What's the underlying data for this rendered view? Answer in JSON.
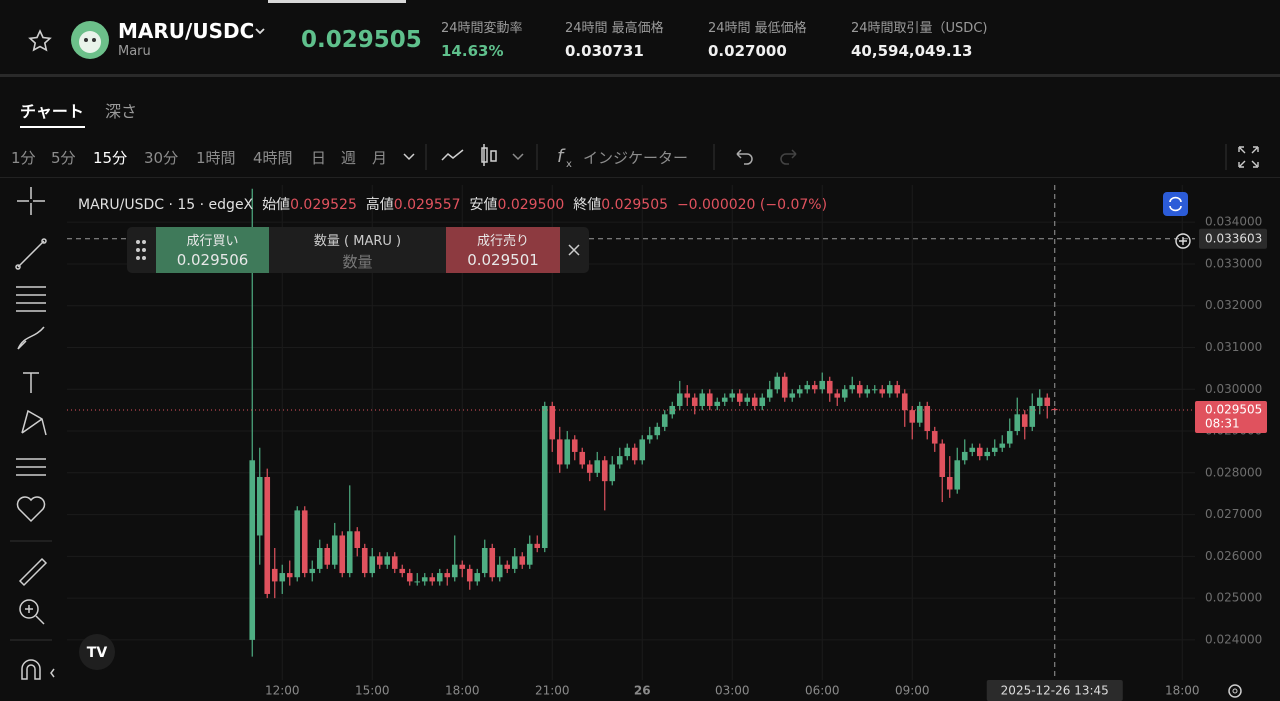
{
  "header": {
    "pair": "MARU/USDC",
    "name": "Maru",
    "price": "0.029505",
    "stats": [
      {
        "label": "24時間変動率",
        "value": "14.63%"
      },
      {
        "label": "24時間 最高価格",
        "value": "0.030731"
      },
      {
        "label": "24時間 最低価格",
        "value": "0.027000"
      },
      {
        "label": "24時間取引量（USDC)",
        "value": "40,594,049.13"
      }
    ]
  },
  "tabs": [
    "チャート",
    "深さ"
  ],
  "intervals": [
    "1分",
    "5分",
    "15分",
    "30分",
    "1時間",
    "4時間",
    "日",
    "週",
    "月"
  ],
  "indicator_button": "インジケーター",
  "order_panel": {
    "buy_label": "成行買い",
    "buy_price": "0.029506",
    "qty_label": "数量 ( MARU )",
    "qty_placeholder": "数量",
    "sell_label": "成行売り",
    "sell_price": "0.029501"
  },
  "legend": {
    "symbol": "MARU/USDC · 15 · edgeX",
    "open_label": "始値",
    "open": "0.029525",
    "high_label": "高値",
    "high": "0.029557",
    "low_label": "安値",
    "low": "0.029500",
    "close_label": "終値",
    "close": "0.029505",
    "change": "−0.000020 (−0.07%)"
  },
  "chart_data": {
    "type": "candlestick",
    "up_color": "#4fae83",
    "down_color": "#e0525e",
    "grid": true,
    "xlim": [
      -24.7,
      125.7
    ],
    "xticks": [
      {
        "value": 4,
        "label": "12:00"
      },
      {
        "value": 16,
        "label": "15:00"
      },
      {
        "value": 28,
        "label": "18:00"
      },
      {
        "value": 40,
        "label": "21:00"
      },
      {
        "value": 52,
        "label": "26"
      },
      {
        "value": 64,
        "label": "03:00"
      },
      {
        "value": 76,
        "label": "06:00"
      },
      {
        "value": 88,
        "label": "09:00"
      },
      {
        "value": 124,
        "label": "18:00"
      }
    ],
    "ylim": [
      0.02304,
      0.03489
    ],
    "yticks": [
      {
        "value": 0.024,
        "label": "0.024000"
      },
      {
        "value": 0.025,
        "label": "0.025000"
      },
      {
        "value": 0.026,
        "label": "0.026000"
      },
      {
        "value": 0.027,
        "label": "0.027000"
      },
      {
        "value": 0.028,
        "label": "0.028000"
      },
      {
        "value": 0.029,
        "label": "0.029000"
      },
      {
        "value": 0.03,
        "label": "0.030000"
      },
      {
        "value": 0.031,
        "label": "0.031000"
      },
      {
        "value": 0.032,
        "label": "0.032000"
      },
      {
        "value": 0.033,
        "label": "0.033000"
      },
      {
        "value": 0.034,
        "label": "0.034000"
      }
    ],
    "last_price": 0.029505,
    "last_price_countdown": "08:31",
    "crosshair_price": 0.033603,
    "crosshair_x": {
      "value": 107,
      "label": "2025-12-26  13:45"
    },
    "ohlc": [
      [
        0.024,
        0.0348,
        0.0236,
        0.0283
      ],
      [
        0.0265,
        0.0286,
        0.0258,
        0.0279
      ],
      [
        0.0279,
        0.0281,
        0.025,
        0.0251
      ],
      [
        0.0257,
        0.0262,
        0.025,
        0.0254
      ],
      [
        0.0254,
        0.0258,
        0.0251,
        0.0256
      ],
      [
        0.0256,
        0.0259,
        0.0253,
        0.0255
      ],
      [
        0.0255,
        0.0272,
        0.0254,
        0.0271
      ],
      [
        0.0271,
        0.0272,
        0.0255,
        0.0256
      ],
      [
        0.0256,
        0.0259,
        0.0254,
        0.0257
      ],
      [
        0.0257,
        0.0264,
        0.0256,
        0.0262
      ],
      [
        0.0262,
        0.0263,
        0.0257,
        0.0258
      ],
      [
        0.0258,
        0.0268,
        0.0257,
        0.0265
      ],
      [
        0.0265,
        0.0266,
        0.0255,
        0.0256
      ],
      [
        0.0256,
        0.0277,
        0.0255,
        0.0266
      ],
      [
        0.0266,
        0.0267,
        0.026,
        0.0262
      ],
      [
        0.0262,
        0.0263,
        0.0255,
        0.0256
      ],
      [
        0.0256,
        0.0262,
        0.0255,
        0.026
      ],
      [
        0.026,
        0.0261,
        0.0257,
        0.0258
      ],
      [
        0.0258,
        0.0261,
        0.0257,
        0.026
      ],
      [
        0.026,
        0.0261,
        0.0256,
        0.0257
      ],
      [
        0.0257,
        0.0258,
        0.0255,
        0.0256
      ],
      [
        0.0256,
        0.0257,
        0.0253,
        0.0254
      ],
      [
        0.0254,
        0.0256,
        0.0253,
        0.0254
      ],
      [
        0.0254,
        0.0256,
        0.0253,
        0.0255
      ],
      [
        0.0255,
        0.0256,
        0.0253,
        0.0254
      ],
      [
        0.0254,
        0.0257,
        0.0253,
        0.0256
      ],
      [
        0.0256,
        0.0257,
        0.0253,
        0.0255
      ],
      [
        0.0255,
        0.0265,
        0.0254,
        0.0258
      ],
      [
        0.0258,
        0.0259,
        0.0255,
        0.0257
      ],
      [
        0.0257,
        0.0258,
        0.0252,
        0.0254
      ],
      [
        0.0254,
        0.0257,
        0.0253,
        0.0256
      ],
      [
        0.0256,
        0.0264,
        0.0255,
        0.0262
      ],
      [
        0.0262,
        0.0263,
        0.0254,
        0.0255
      ],
      [
        0.0255,
        0.026,
        0.0254,
        0.0258
      ],
      [
        0.0258,
        0.0259,
        0.0256,
        0.0257
      ],
      [
        0.0257,
        0.0262,
        0.0256,
        0.026
      ],
      [
        0.026,
        0.0261,
        0.0257,
        0.0258
      ],
      [
        0.0258,
        0.0265,
        0.0257,
        0.0263
      ],
      [
        0.0263,
        0.0265,
        0.0261,
        0.0262
      ],
      [
        0.0262,
        0.0297,
        0.0261,
        0.0296
      ],
      [
        0.0296,
        0.0297,
        0.0285,
        0.0288
      ],
      [
        0.0288,
        0.0291,
        0.028,
        0.0282
      ],
      [
        0.0282,
        0.029,
        0.0281,
        0.0288
      ],
      [
        0.0288,
        0.0289,
        0.0283,
        0.0285
      ],
      [
        0.0285,
        0.0286,
        0.0281,
        0.0282
      ],
      [
        0.0282,
        0.0283,
        0.0278,
        0.028
      ],
      [
        0.028,
        0.0285,
        0.0279,
        0.0283
      ],
      [
        0.0283,
        0.0284,
        0.0271,
        0.0278
      ],
      [
        0.0278,
        0.0284,
        0.0277,
        0.0282
      ],
      [
        0.0282,
        0.0286,
        0.0281,
        0.0284
      ],
      [
        0.0284,
        0.0287,
        0.0283,
        0.0286
      ],
      [
        0.0286,
        0.0287,
        0.0282,
        0.0283
      ],
      [
        0.0283,
        0.0289,
        0.0282,
        0.0288
      ],
      [
        0.0288,
        0.0291,
        0.0287,
        0.0289
      ],
      [
        0.0289,
        0.0292,
        0.0288,
        0.0291
      ],
      [
        0.0291,
        0.0295,
        0.029,
        0.0294
      ],
      [
        0.0294,
        0.0297,
        0.0293,
        0.0296
      ],
      [
        0.0296,
        0.0302,
        0.0295,
        0.0299
      ],
      [
        0.0299,
        0.0301,
        0.0296,
        0.0298
      ],
      [
        0.0298,
        0.0299,
        0.0294,
        0.0296
      ],
      [
        0.0296,
        0.03,
        0.0295,
        0.0299
      ],
      [
        0.0299,
        0.03,
        0.0295,
        0.0296
      ],
      [
        0.0296,
        0.0298,
        0.0295,
        0.0297
      ],
      [
        0.0297,
        0.0299,
        0.0296,
        0.0298
      ],
      [
        0.0298,
        0.03,
        0.0297,
        0.0299
      ],
      [
        0.0299,
        0.03,
        0.0296,
        0.0297
      ],
      [
        0.0297,
        0.0299,
        0.0296,
        0.0298
      ],
      [
        0.0298,
        0.0299,
        0.0295,
        0.0296
      ],
      [
        0.0296,
        0.0299,
        0.0295,
        0.0298
      ],
      [
        0.0298,
        0.0302,
        0.0297,
        0.03
      ],
      [
        0.03,
        0.0304,
        0.0299,
        0.0303
      ],
      [
        0.0303,
        0.0304,
        0.0297,
        0.0298
      ],
      [
        0.0298,
        0.03,
        0.0297,
        0.0299
      ],
      [
        0.0299,
        0.0301,
        0.0298,
        0.03
      ],
      [
        0.03,
        0.0302,
        0.0299,
        0.0301
      ],
      [
        0.0301,
        0.0302,
        0.0299,
        0.03
      ],
      [
        0.03,
        0.0304,
        0.0299,
        0.0302
      ],
      [
        0.0302,
        0.0303,
        0.0297,
        0.0299
      ],
      [
        0.0299,
        0.03,
        0.0296,
        0.0298
      ],
      [
        0.0298,
        0.0301,
        0.0297,
        0.03
      ],
      [
        0.03,
        0.0303,
        0.0299,
        0.0301
      ],
      [
        0.0301,
        0.0302,
        0.0298,
        0.0299
      ],
      [
        0.0299,
        0.0301,
        0.0298,
        0.03
      ],
      [
        0.03,
        0.0301,
        0.0299,
        0.03
      ],
      [
        0.03,
        0.0301,
        0.0298,
        0.0299
      ],
      [
        0.0299,
        0.0302,
        0.0298,
        0.0301
      ],
      [
        0.0301,
        0.0302,
        0.0298,
        0.0299
      ],
      [
        0.0299,
        0.03,
        0.0291,
        0.0295
      ],
      [
        0.0295,
        0.0296,
        0.0288,
        0.0292
      ],
      [
        0.0292,
        0.0297,
        0.0291,
        0.0296
      ],
      [
        0.0296,
        0.0297,
        0.0288,
        0.029
      ],
      [
        0.029,
        0.0291,
        0.0285,
        0.0287
      ],
      [
        0.0287,
        0.0288,
        0.0273,
        0.0279
      ],
      [
        0.0279,
        0.0284,
        0.0274,
        0.0276
      ],
      [
        0.0276,
        0.0286,
        0.0275,
        0.0283
      ],
      [
        0.0283,
        0.0288,
        0.0282,
        0.0285
      ],
      [
        0.0285,
        0.0287,
        0.0284,
        0.0286
      ],
      [
        0.0286,
        0.0287,
        0.0283,
        0.0284
      ],
      [
        0.0284,
        0.0286,
        0.0283,
        0.0285
      ],
      [
        0.0285,
        0.0288,
        0.0284,
        0.0286
      ],
      [
        0.0286,
        0.0289,
        0.0285,
        0.0287
      ],
      [
        0.0287,
        0.0293,
        0.0286,
        0.029
      ],
      [
        0.029,
        0.0298,
        0.0289,
        0.0294
      ],
      [
        0.0294,
        0.0295,
        0.0288,
        0.0291
      ],
      [
        0.0291,
        0.0299,
        0.029,
        0.0296
      ],
      [
        0.0296,
        0.03,
        0.0294,
        0.0298
      ],
      [
        0.0298,
        0.0299,
        0.0293,
        0.0296
      ],
      [
        0.029525,
        0.029557,
        0.0295,
        0.029505
      ]
    ]
  }
}
